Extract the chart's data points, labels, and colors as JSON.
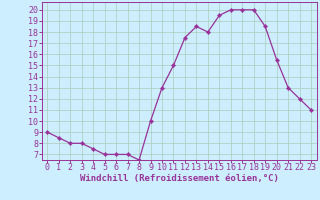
{
  "x": [
    0,
    1,
    2,
    3,
    4,
    5,
    6,
    7,
    8,
    9,
    10,
    11,
    12,
    13,
    14,
    15,
    16,
    17,
    18,
    19,
    20,
    21,
    22,
    23
  ],
  "y": [
    9.0,
    8.5,
    8.0,
    8.0,
    7.5,
    7.0,
    7.0,
    7.0,
    6.5,
    10.0,
    13.0,
    15.0,
    17.5,
    18.5,
    18.0,
    19.5,
    20.0,
    20.0,
    20.0,
    18.5,
    15.5,
    13.0,
    12.0,
    11.0
  ],
  "line_color": "#993399",
  "marker": "D",
  "marker_size": 2.2,
  "linewidth": 0.9,
  "xlabel": "Windchill (Refroidissement éolien,°C)",
  "xlim": [
    -0.5,
    23.5
  ],
  "ylim": [
    6.5,
    20.7
  ],
  "yticks": [
    7,
    8,
    9,
    10,
    11,
    12,
    13,
    14,
    15,
    16,
    17,
    18,
    19,
    20
  ],
  "xticks": [
    0,
    1,
    2,
    3,
    4,
    5,
    6,
    7,
    8,
    9,
    10,
    11,
    12,
    13,
    14,
    15,
    16,
    17,
    18,
    19,
    20,
    21,
    22,
    23
  ],
  "bg_color": "#cceeff",
  "grid_color": "#aaccbb",
  "xlabel_fontsize": 6.5,
  "tick_fontsize": 6.0,
  "line_purple": "#993399"
}
